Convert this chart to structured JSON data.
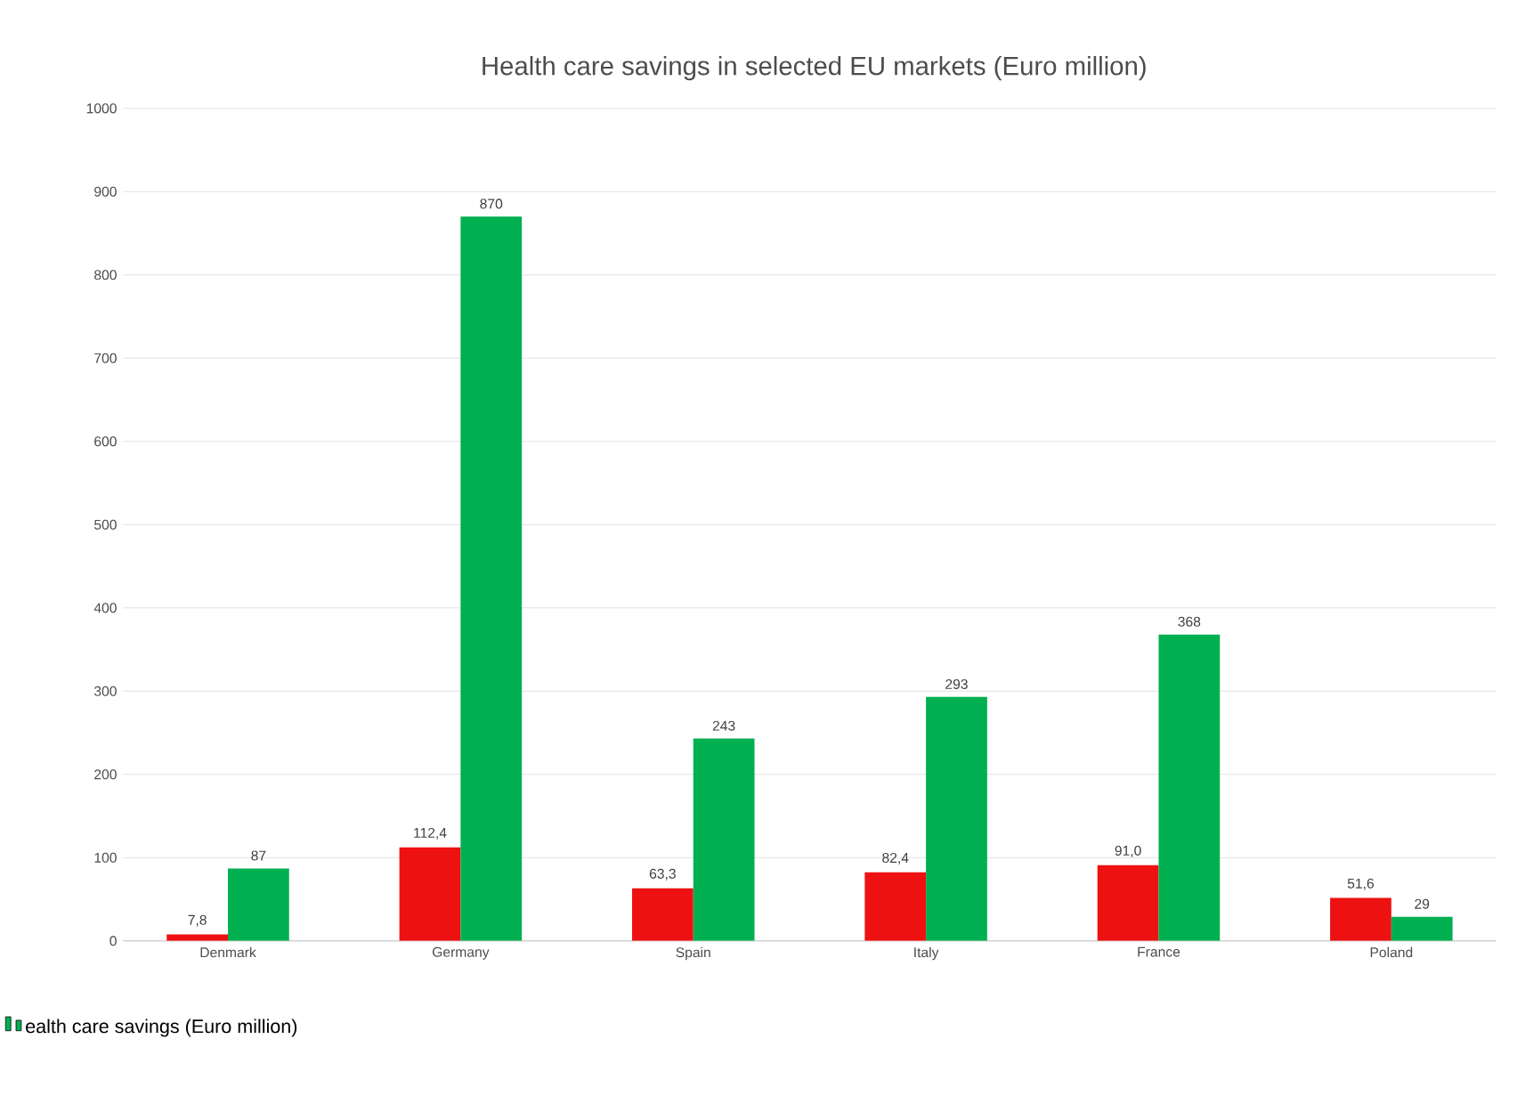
{
  "chart_data": {
    "type": "bar",
    "title": "Health care savings in selected EU markets (Euro million)",
    "categories": [
      "Denmark",
      "Germany",
      "Spain",
      "Italy",
      "France",
      "Poland"
    ],
    "series": [
      {
        "color": "#ee1111",
        "values": [
          7.8,
          112.4,
          63.3,
          82.4,
          91.0,
          51.6
        ],
        "value_labels": [
          "7,8",
          "112,4",
          "63,3",
          "82,4",
          "91,0",
          "51,6"
        ]
      },
      {
        "name": "ealth care savings (Euro million)",
        "color": "#00b050",
        "values": [
          87,
          870,
          243,
          293,
          368,
          29
        ],
        "value_labels": [
          "87",
          "870",
          "243",
          "293",
          "368",
          "29"
        ]
      }
    ],
    "ylim": [
      0,
      1000
    ],
    "yticks": [
      0,
      100,
      200,
      300,
      400,
      500,
      600,
      700,
      800,
      900,
      1000
    ],
    "grid": "y",
    "legend": "bottom left"
  }
}
